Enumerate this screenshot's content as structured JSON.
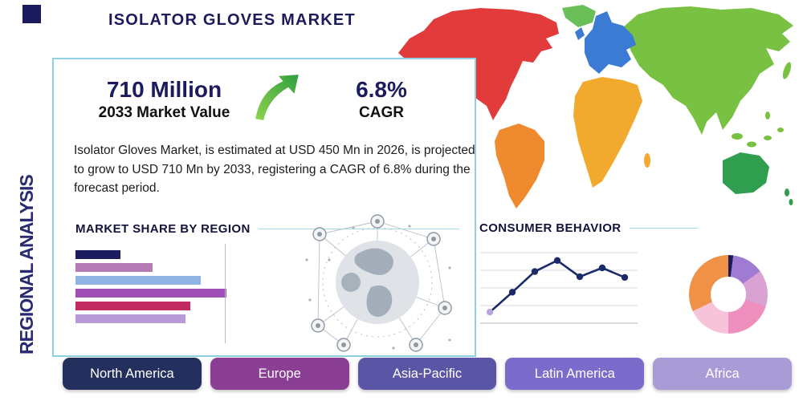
{
  "page": {
    "title": "ISOLATOR GLOVES MARKET",
    "vertical_label": "REGIONAL ANALYSIS"
  },
  "stats": {
    "value": "710 Million",
    "value_label": "2033 Market Value",
    "cagr": "6.8%",
    "cagr_label": "CAGR"
  },
  "description": "Isolator Gloves Market, is estimated at USD 450 Mn in 2026, is projected to grow to USD 710 Mn by 2033, registering a CAGR of 6.8% during the forecast period.",
  "sections": {
    "market_share": "MARKET SHARE BY REGION",
    "consumer_behavior": "CONSUMER BEHAVIOR"
  },
  "colors": {
    "accent_navy": "#1b1b5e",
    "card_border": "#8fd0e2",
    "section_line": "#a5dcea",
    "arrow_green": "#57b949"
  },
  "buttons": [
    {
      "label": "North America",
      "color": "#232f5c"
    },
    {
      "label": "Europe",
      "color": "#8a3f94"
    },
    {
      "label": "Asia-Pacific",
      "color": "#5b55a6"
    },
    {
      "label": "Latin America",
      "color": "#7b6ccb"
    },
    {
      "label": "Africa",
      "color": "#a89bd6"
    }
  ],
  "map": {
    "regions": [
      {
        "name": "north-america",
        "color": "#e23b3b"
      },
      {
        "name": "greenland",
        "color": "#6abf59"
      },
      {
        "name": "south-america",
        "color": "#f08a2e"
      },
      {
        "name": "europe",
        "color": "#3b7bd4"
      },
      {
        "name": "africa",
        "color": "#f2aa2e"
      },
      {
        "name": "asia",
        "color": "#79c143"
      },
      {
        "name": "australia",
        "color": "#2f9e4e"
      }
    ]
  },
  "chart_data": [
    {
      "type": "bar",
      "title": "MARKET SHARE BY REGION",
      "orientation": "horizontal",
      "note": "bars unlabeled in image; values are relative lengths as % of longest bar",
      "values": [
        30,
        51,
        83,
        100,
        76,
        73
      ],
      "colors": [
        "#1b1b5e",
        "#b57bb5",
        "#8fb4e3",
        "#9d4fb5",
        "#c22a62",
        "#b79bd9"
      ]
    },
    {
      "type": "line",
      "title": "CONSUMER BEHAVIOR",
      "note": "axes unlabeled in image; values estimated on 0-100 scale",
      "x": [
        1,
        2,
        3,
        4,
        5,
        6,
        7
      ],
      "values": [
        15,
        42,
        70,
        85,
        63,
        75,
        62
      ],
      "color": "#1b2a6b",
      "first_marker_color": "#b9a7e0",
      "grid": true
    },
    {
      "type": "pie",
      "donut": true,
      "note": "segments unlabeled in image; values estimated %",
      "segments": [
        {
          "color": "#1b1b5e",
          "value": 2
        },
        {
          "color": "#9f7bd3",
          "value": 13
        },
        {
          "color": "#d8a3d3",
          "value": 15
        },
        {
          "color": "#ee8fbe",
          "value": 20
        },
        {
          "color": "#f6c3d8",
          "value": 18
        },
        {
          "color": "#ef9147",
          "value": 32
        }
      ]
    }
  ]
}
